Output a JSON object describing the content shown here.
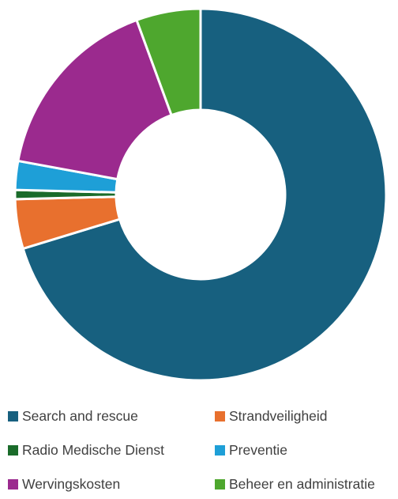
{
  "chart_data": {
    "type": "pie",
    "variant": "donut",
    "title": "",
    "categories": [
      "Search and rescue",
      "Strandveiligheid",
      "Radio Medische Dienst",
      "Preventie",
      "Wervingskosten",
      "Beheer en administratie"
    ],
    "values": [
      70.3,
      4.3,
      0.8,
      2.5,
      16.5,
      5.6
    ],
    "colors": [
      "#17607f",
      "#e8702e",
      "#1a6b2a",
      "#1e9fd7",
      "#9b2a8e",
      "#4ea72e"
    ],
    "legend_position": "bottom"
  }
}
